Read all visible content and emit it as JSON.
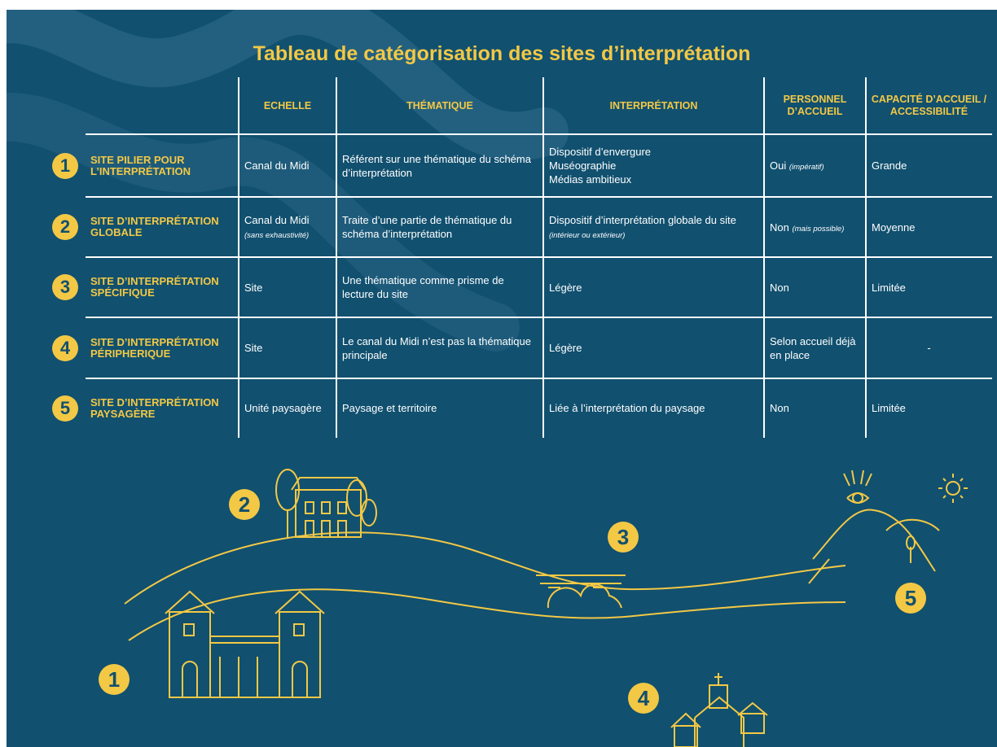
{
  "title": "Tableau de catégorisation des sites d’interprétation",
  "table": {
    "columns": [
      "ECHELLE",
      "THÉMATIQUE",
      "INTERPRÉTATION",
      "PERSONNEL D’ACCUEIL",
      "CAPACITÉ D’ACCUEIL / ACCESSIBILITÉ"
    ],
    "rows": [
      {
        "number": "1",
        "name": "SITE PILIER POUR L’INTERPRÉTATION",
        "cells": [
          {
            "text": "Canal du Midi"
          },
          {
            "text": "Référent sur une thématique du schéma d’interprétation"
          },
          {
            "text": "Dispositif d’envergure\nMuséographie\nMédias ambitieux"
          },
          {
            "text": "Oui",
            "note": "(impératif)"
          },
          {
            "text": "Grande"
          }
        ]
      },
      {
        "number": "2",
        "name": "SITE D’INTERPRÉTATION GLOBALE",
        "cells": [
          {
            "text": "Canal du Midi",
            "note": "(sans exhaustivité)"
          },
          {
            "text": "Traite d’une partie de thématique du schéma d’interprétation"
          },
          {
            "text": "Dispositif d’interprétation globale du site",
            "note": "(intérieur ou extérieur)"
          },
          {
            "text": "Non",
            "note": "(mais possible)"
          },
          {
            "text": "Moyenne"
          }
        ]
      },
      {
        "number": "3",
        "name": "SITE D’INTERPRÉTATION SPÉCIFIQUE",
        "cells": [
          {
            "text": "Site"
          },
          {
            "text": "Une thématique comme prisme de lecture du site"
          },
          {
            "text": "Légère"
          },
          {
            "text": "Non"
          },
          {
            "text": "Limitée"
          }
        ]
      },
      {
        "number": "4",
        "name": "SITE D’INTERPRÉTATION PÉRIPHERIQUE",
        "cells": [
          {
            "text": "Site"
          },
          {
            "text": "Le canal du Midi n’est pas la thématique principale"
          },
          {
            "text": "Légère"
          },
          {
            "text": "Selon accueil déjà en place"
          },
          {
            "text": "-"
          }
        ]
      },
      {
        "number": "5",
        "name": "SITE D’INTERPRÉTATION PAYSAGÈRE",
        "cells": [
          {
            "text": "Unité paysagère"
          },
          {
            "text": "Paysage et territoire"
          },
          {
            "text": "Liée à l’interprétation du paysage"
          },
          {
            "text": "Non"
          },
          {
            "text": "Limitée"
          }
        ]
      }
    ]
  }
}
